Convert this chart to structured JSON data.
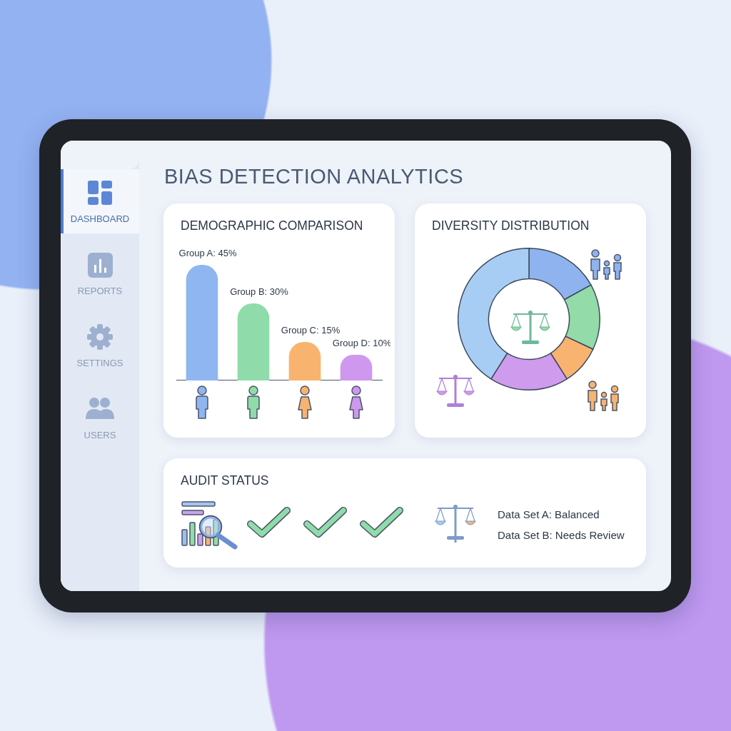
{
  "chart_data": [
    {
      "type": "other",
      "title": "BIAS DETECTION ANALYTICS",
      "annotations": [
        "DASHBOARD",
        "REPORTS",
        "SETTINGS",
        "USERS"
      ]
    },
    {
      "type": "bar",
      "title": "DEMOGRAPHIC COMPARISON",
      "categories": [
        null,
        null,
        null,
        null
      ],
      "values": [
        45,
        30,
        15,
        10
      ],
      "colors": [
        "#8fb6f0",
        "#8fdcaa",
        "#f8b46e",
        "#cf98ef"
      ],
      "value_labels": [
        "Group A: 45%",
        "Group B: 30%",
        "Group C: 15%",
        "Group D: 10%"
      ]
    },
    {
      "type": "donut",
      "title": "DIVERSITY DISTRIBUTION",
      "categories": [
        null,
        null,
        null,
        null,
        null
      ],
      "values": [
        17,
        15,
        9,
        18,
        41
      ],
      "colors": [
        "#8fb3ef",
        "#93dba8",
        "#f7b36f",
        "#cf9bec",
        "#a8cdf5"
      ]
    },
    {
      "type": "other",
      "title": "AUDIT STATUS",
      "annotations": [
        "Data Set A: Balanced",
        "Data Set B: Needs Review"
      ]
    }
  ]
}
